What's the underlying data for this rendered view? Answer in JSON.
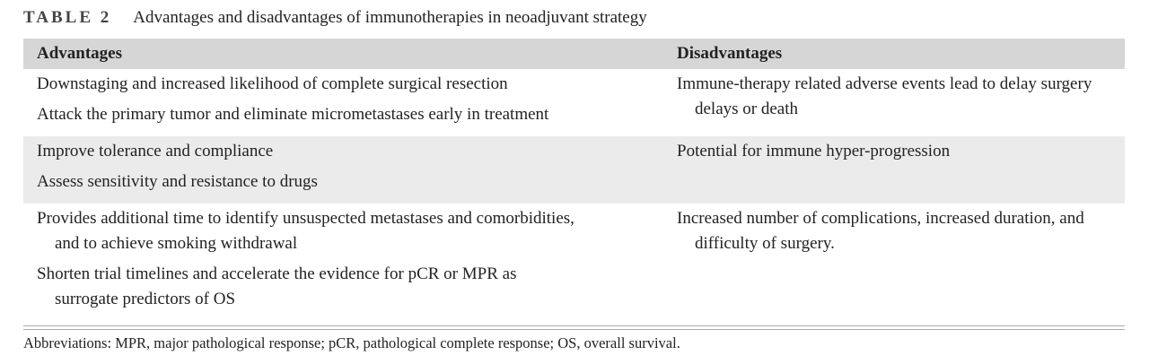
{
  "caption": {
    "label": "TABLE 2",
    "title": "Advantages and disadvantages of immunotherapies in neoadjuvant strategy"
  },
  "table": {
    "headers": [
      "Advantages",
      "Disadvantages"
    ],
    "rows": [
      {
        "advantages": [
          "Downstaging and increased likelihood of complete surgical resection",
          "Attack the primary tumor and eliminate micrometastases early in treatment"
        ],
        "disadvantages": [
          "Immune-therapy related adverse events lead to delay surgery delays or death"
        ]
      },
      {
        "advantages": [
          "Improve tolerance and compliance",
          "Assess sensitivity and resistance to drugs"
        ],
        "disadvantages": [
          "Potential for immune hyper-progression"
        ]
      },
      {
        "advantages": [
          "Provides additional time to identify unsuspected metastases and comorbidities, and to achieve smoking withdrawal",
          "Shorten trial timelines and accelerate the evidence for pCR or MPR as surrogate predictors of OS"
        ],
        "disadvantages": [
          "Increased number of complications, increased duration, and difficulty of surgery."
        ]
      }
    ]
  },
  "footnote": "Abbreviations: MPR, major pathological response; pCR, pathological complete response; OS, overall survival."
}
